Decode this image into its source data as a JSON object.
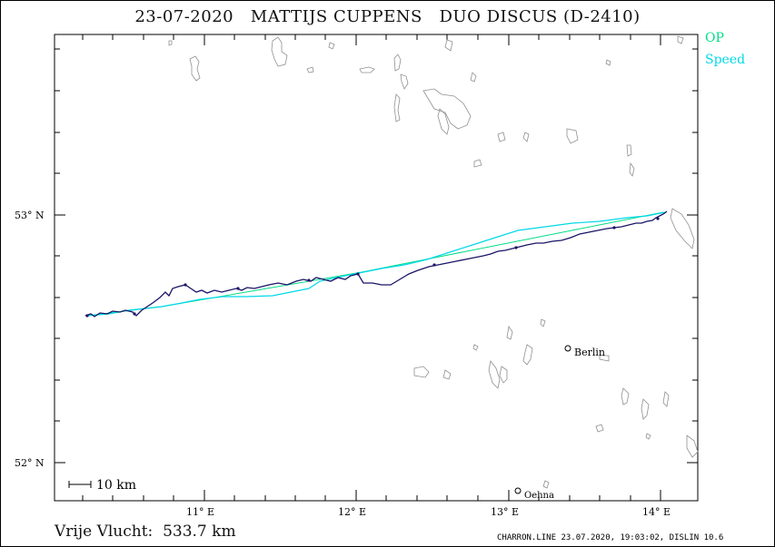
{
  "header": {
    "title": "23-07-2020   MATTIJS CUPPENS   DUO DISCUS (D-2410)"
  },
  "legend": {
    "op_label": "OP",
    "speed_label": "Speed",
    "op_color": "#00dd88",
    "speed_color": "#00d8e8"
  },
  "axes": {
    "lat_labels": [
      "53° N",
      "52° N"
    ],
    "lon_labels": [
      "11° E",
      "12° E",
      "13° E",
      "14° E"
    ]
  },
  "scale_bar": {
    "label": "10 km"
  },
  "places": [
    {
      "name": "Berlin"
    },
    {
      "name": "Oehna"
    }
  ],
  "footer": {
    "distance_text": "Vrije Vlucht:  533.7 km",
    "credit": "CHARRON.LINE 23.07.2020, 19:03:02, DISLIN 10.6"
  },
  "colors": {
    "track": "#1a1466",
    "op_line": "#00dd88",
    "speed_line": "#00d8e8",
    "water": "#909090"
  }
}
